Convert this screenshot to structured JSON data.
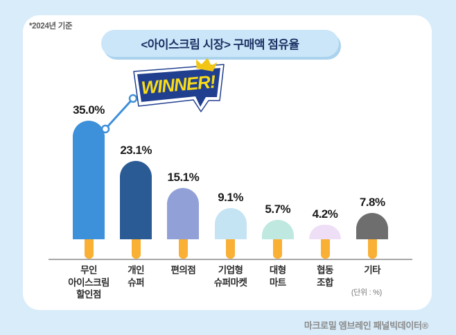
{
  "note": "*2024년 기준",
  "header": {
    "title": "<아이스크림 시장> 구매액 점유율"
  },
  "winner_badge": {
    "label": "WINNER!"
  },
  "unit_label": "(단위 : %)",
  "source": "마크로밀 엠브레인 패널빅데이터®",
  "colors": {
    "background": "#D9ECFA",
    "card": "#FFFFFF",
    "title_box": "#CBE6F9",
    "title_text": "#1B3264",
    "banner_navy": "#203F8F",
    "banner_yellow": "#F9DC17",
    "crown_gold": "#F2C513",
    "connector_blue": "#3E8FD9",
    "stick_orange": "#F9B035",
    "baseline_gray": "#A7A7A7"
  },
  "chart_data": {
    "type": "bar",
    "title": "<아이스크림 시장> 구매액 점유율",
    "subtitle_note": "*2024년 기준",
    "unit": "%",
    "categories": [
      "무인\n아이스크림\n할인점",
      "개인\n슈퍼",
      "편의점",
      "기업형\n슈퍼마켓",
      "대형\n마트",
      "협동\n조합",
      "기타"
    ],
    "values": [
      35.0,
      23.1,
      15.1,
      9.1,
      5.7,
      4.2,
      7.8
    ],
    "value_labels": [
      "35.0%",
      "23.1%",
      "15.1%",
      "9.1%",
      "5.7%",
      "4.2%",
      "7.8%"
    ],
    "bar_colors": [
      "#3C91DA",
      "#2B5B95",
      "#91A0D6",
      "#C5E4F3",
      "#BEE8E0",
      "#EEDFF6",
      "#6E6E6E"
    ],
    "ylim": [
      0,
      38
    ],
    "annotation": "WINNER! (1위: 무인 아이스크림 할인점)",
    "legend": "none",
    "grid": "off"
  }
}
